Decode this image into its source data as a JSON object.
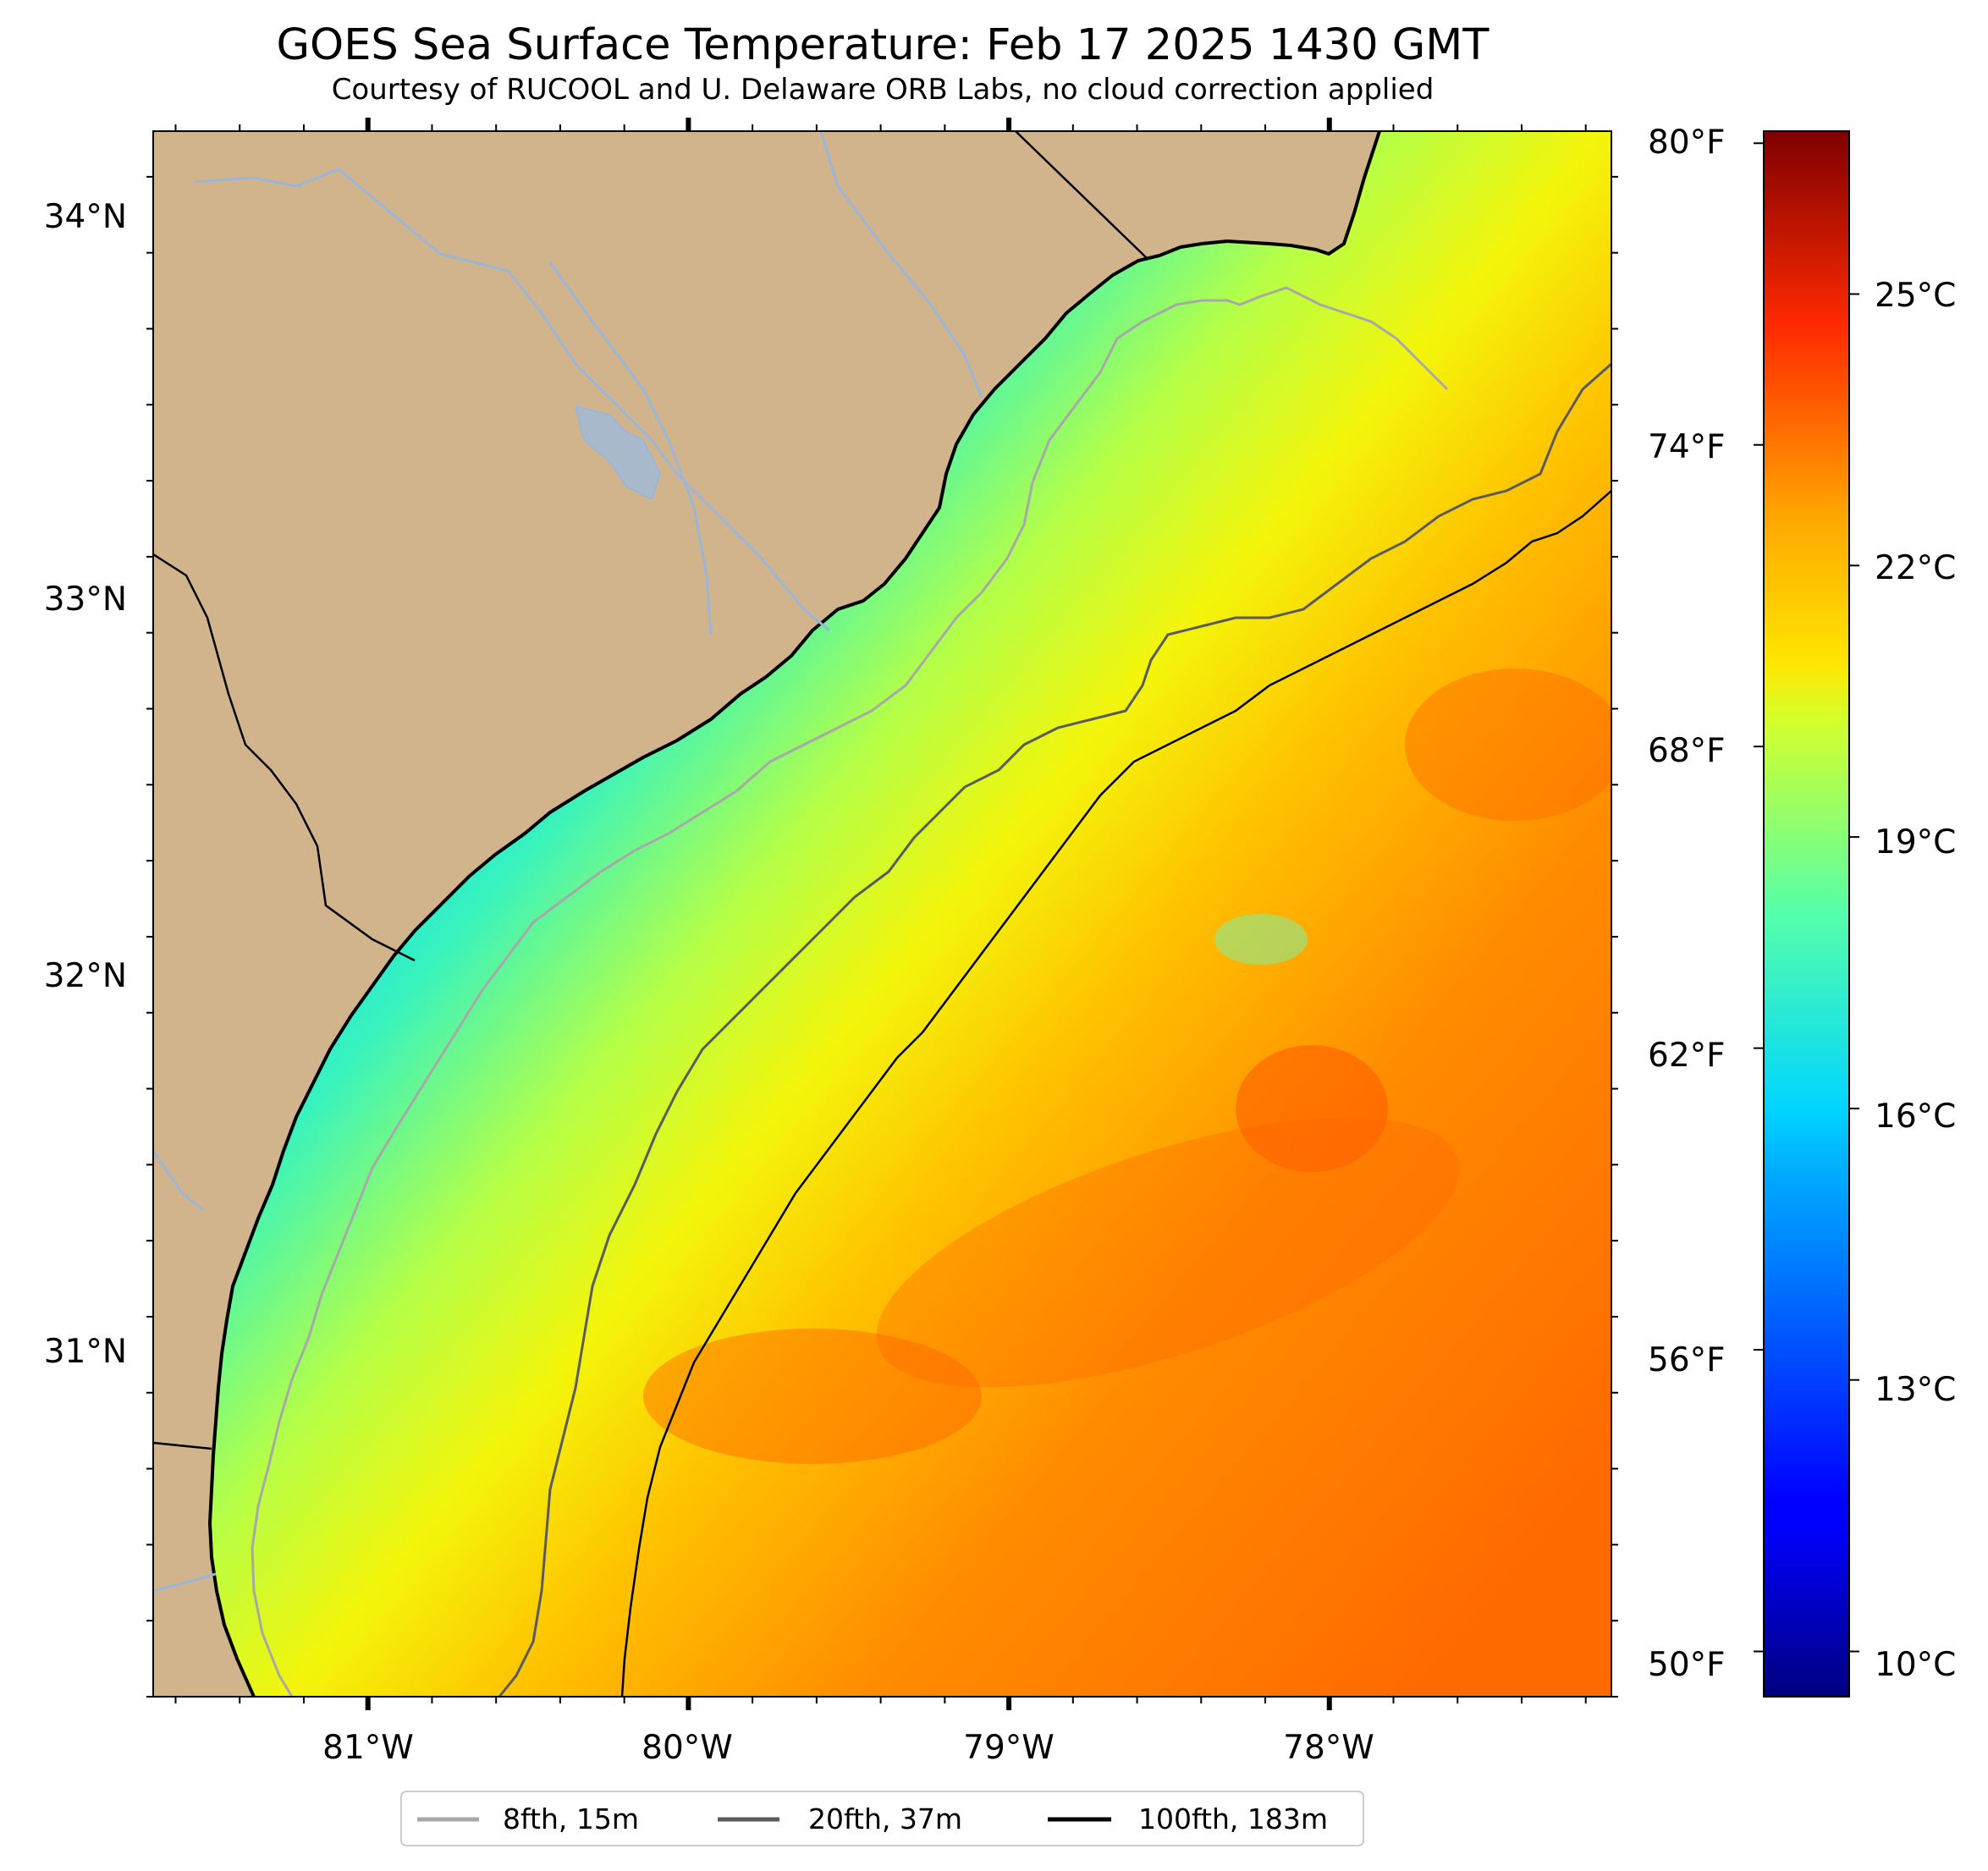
{
  "title": "GOES Sea Surface Temperature: Feb 17 2025 1430 GMT",
  "subtitle": "Courtesy of RUCOOL and U. Delaware ORB Labs, no cloud correction applied",
  "colors": {
    "land": "#d2b48c",
    "river": "#9bb5d6",
    "coastline": "#000000",
    "isobath_8fth": "#a8a8a8",
    "isobath_20fth": "#5a5a5a",
    "isobath_100fth": "#000000"
  },
  "map": {
    "lon_range": [
      -81.67,
      -77.12
    ],
    "lat_range": [
      30.1,
      34.22
    ],
    "lat_ticks": [
      {
        "value": 34,
        "label": "34°N"
      },
      {
        "value": 33,
        "label": "33°N"
      },
      {
        "value": 32,
        "label": "32°N"
      },
      {
        "value": 31,
        "label": "31°N"
      }
    ],
    "lon_ticks": [
      {
        "value": -81,
        "label": "81°W"
      },
      {
        "value": -80,
        "label": "80°W"
      },
      {
        "value": -79,
        "label": "79°W"
      },
      {
        "value": -78,
        "label": "78°W"
      }
    ]
  },
  "colorbar": {
    "colormap": "jet",
    "celsius_range": [
      9.5,
      26.8
    ],
    "celsius_ticks": [
      {
        "value": 25,
        "label": "25°C"
      },
      {
        "value": 22,
        "label": "22°C"
      },
      {
        "value": 19,
        "label": "19°C"
      },
      {
        "value": 16,
        "label": "16°C"
      },
      {
        "value": 13,
        "label": "13°C"
      },
      {
        "value": 10,
        "label": "10°C"
      }
    ],
    "fahrenheit_ticks": [
      {
        "value": 80,
        "label": "80°F"
      },
      {
        "value": 74,
        "label": "74°F"
      },
      {
        "value": 68,
        "label": "68°F"
      },
      {
        "value": 62,
        "label": "62°F"
      },
      {
        "value": 56,
        "label": "56°F"
      },
      {
        "value": 50,
        "label": "50°F"
      }
    ]
  },
  "legend": {
    "entries": [
      {
        "label": "8fth, 15m"
      },
      {
        "label": "20fth, 37m"
      },
      {
        "label": "100fth, 183m"
      }
    ]
  }
}
